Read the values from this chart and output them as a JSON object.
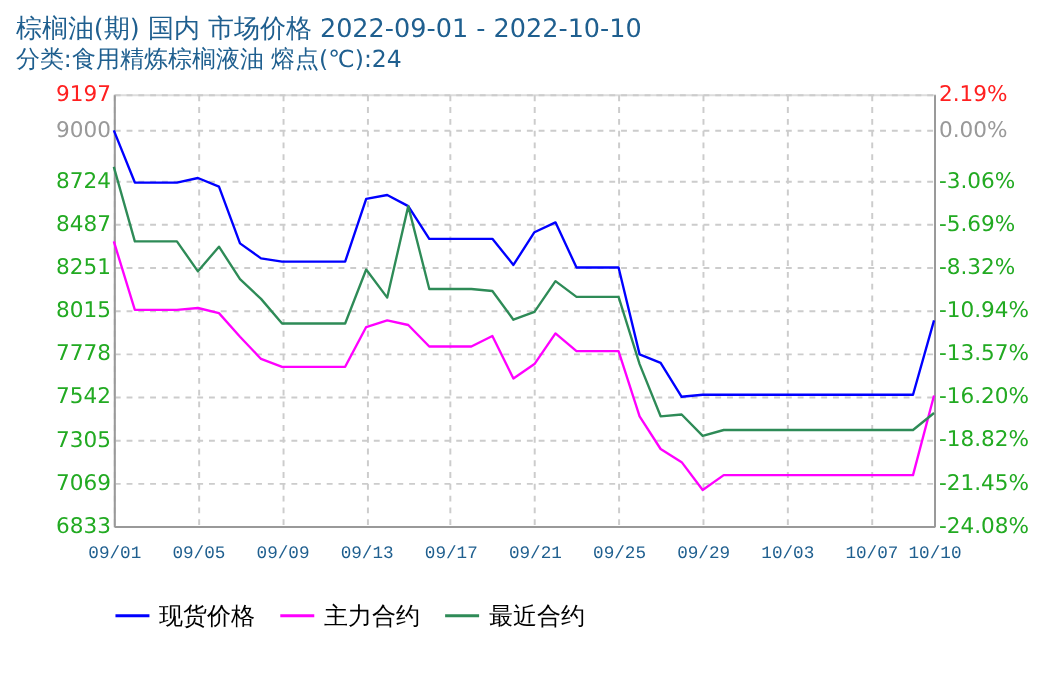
{
  "chart_data": {
    "type": "line",
    "title": "棕榈油(期) 国内 市场价格 2022-09-01 - 2022-10-10",
    "subtitle": "分类:食用精炼棕榈液油 熔点(℃):24",
    "x": [
      "2022-09-01",
      "2022-09-02",
      "2022-09-03",
      "2022-09-04",
      "2022-09-05",
      "2022-09-06",
      "2022-09-07",
      "2022-09-08",
      "2022-09-09",
      "2022-09-10",
      "2022-09-11",
      "2022-09-12",
      "2022-09-13",
      "2022-09-14",
      "2022-09-15",
      "2022-09-16",
      "2022-09-17",
      "2022-09-18",
      "2022-09-19",
      "2022-09-20",
      "2022-09-21",
      "2022-09-22",
      "2022-09-23",
      "2022-09-24",
      "2022-09-25",
      "2022-09-26",
      "2022-09-27",
      "2022-09-28",
      "2022-09-29",
      "2022-09-30",
      "2022-10-01",
      "2022-10-02",
      "2022-10-03",
      "2022-10-04",
      "2022-10-05",
      "2022-10-06",
      "2022-10-07",
      "2022-10-08",
      "2022-10-09",
      "2022-10-10"
    ],
    "series": [
      {
        "name": "现货价格",
        "color": "#0000ff",
        "values": [
          9000,
          8714,
          8714,
          8714,
          8739,
          8692,
          8381,
          8299,
          8281,
          8281,
          8281,
          8281,
          8625,
          8646,
          8585,
          8406,
          8406,
          8406,
          8406,
          8263,
          8442,
          8496,
          8249,
          8249,
          8249,
          7773,
          7727,
          7541,
          7552,
          7552,
          7552,
          7552,
          7552,
          7552,
          7552,
          7552,
          7552,
          7552,
          7552,
          7959
        ]
      },
      {
        "name": "主力合约",
        "color": "#ff00ff",
        "values": [
          8392,
          8017,
          8017,
          8017,
          8027,
          7999,
          7870,
          7748,
          7705,
          7705,
          7705,
          7705,
          7923,
          7959,
          7934,
          7816,
          7816,
          7816,
          7874,
          7641,
          7720,
          7888,
          7791,
          7791,
          7791,
          7434,
          7255,
          7183,
          7030,
          7112,
          7112,
          7112,
          7112,
          7112,
          7112,
          7112,
          7112,
          7112,
          7112,
          7548
        ]
      },
      {
        "name": "最近合约",
        "color": "#2e8b57",
        "values": [
          8800,
          8392,
          8392,
          8392,
          8228,
          8363,
          8185,
          8077,
          7942,
          7942,
          7942,
          7942,
          8238,
          8084,
          8585,
          8131,
          8131,
          8131,
          8120,
          7963,
          8006,
          8174,
          8088,
          8088,
          8088,
          7720,
          7434,
          7444,
          7327,
          7359,
          7359,
          7359,
          7359,
          7359,
          7359,
          7359,
          7359,
          7359,
          7359,
          7452
        ]
      }
    ],
    "xlim": [
      "2022-09-01",
      "2022-10-10"
    ],
    "xticks": [
      {
        "value": "2022-09-01",
        "label": "09/01"
      },
      {
        "value": "2022-09-05",
        "label": "09/05"
      },
      {
        "value": "2022-09-09",
        "label": "09/09"
      },
      {
        "value": "2022-09-13",
        "label": "09/13"
      },
      {
        "value": "2022-09-17",
        "label": "09/17"
      },
      {
        "value": "2022-09-21",
        "label": "09/21"
      },
      {
        "value": "2022-09-25",
        "label": "09/25"
      },
      {
        "value": "2022-09-29",
        "label": "09/29"
      },
      {
        "value": "2022-10-03",
        "label": "10/03"
      },
      {
        "value": "2022-10-07",
        "label": "10/07"
      },
      {
        "value": "2022-10-10",
        "label": "10/10"
      }
    ],
    "ylim": [
      6833,
      9197
    ],
    "yticks": [
      6833,
      7069,
      7305,
      7542,
      7778,
      8015,
      8251,
      8487,
      8724,
      9000,
      9197
    ],
    "y2lim": [
      -24.08,
      2.19
    ],
    "y2ticks": [
      {
        "value": -24.08,
        "label": "-24.08%"
      },
      {
        "value": -21.45,
        "label": "-21.45%"
      },
      {
        "value": -18.82,
        "label": "-18.82%"
      },
      {
        "value": -16.2,
        "label": "-16.20%"
      },
      {
        "value": -13.57,
        "label": "-13.57%"
      },
      {
        "value": -10.94,
        "label": "-10.94%"
      },
      {
        "value": -8.32,
        "label": "-8.32%"
      },
      {
        "value": -5.69,
        "label": "-5.69%"
      },
      {
        "value": -3.06,
        "label": "-3.06%"
      },
      {
        "value": 0,
        "label": "0.00%"
      },
      {
        "value": 2.19,
        "label": "2.19%"
      }
    ],
    "grid": true,
    "legend": "bottom",
    "marker": "none",
    "line_style": "solid"
  }
}
